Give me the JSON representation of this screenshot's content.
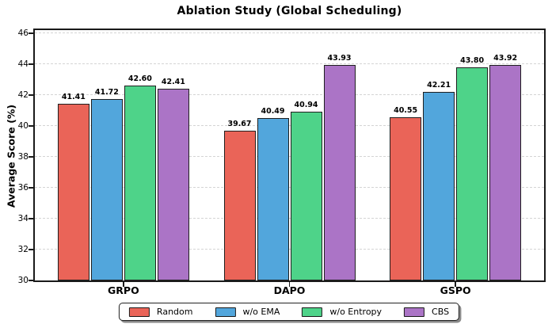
{
  "chart_data": {
    "type": "bar",
    "title": "Ablation Study (Global Scheduling)",
    "ylabel": "Average Score (%)",
    "xlabel": "",
    "categories": [
      "GRPO",
      "DAPO",
      "GSPO"
    ],
    "series": [
      {
        "name": "Random",
        "color": "#EA6458",
        "values": [
          41.41,
          39.67,
          40.55
        ]
      },
      {
        "name": "w/o EMA",
        "color": "#52A6DC",
        "values": [
          41.72,
          40.49,
          42.21
        ]
      },
      {
        "name": "w/o Entropy",
        "color": "#4ED389",
        "values": [
          42.6,
          40.94,
          43.8
        ]
      },
      {
        "name": "CBS",
        "color": "#AB74C6",
        "values": [
          42.41,
          43.93,
          43.92
        ]
      }
    ],
    "bar_value_labels": [
      [
        "41.41",
        "41.72",
        "42.60",
        "42.41"
      ],
      [
        "39.67",
        "40.49",
        "40.94",
        "43.93"
      ],
      [
        "40.55",
        "42.21",
        "43.80",
        "43.92"
      ]
    ],
    "ylim": [
      30,
      46
    ],
    "yticks": [
      30,
      32,
      34,
      36,
      38,
      40,
      42,
      44,
      46
    ],
    "grid": "horizontal-dashed",
    "legend_position": "bottom-center"
  }
}
